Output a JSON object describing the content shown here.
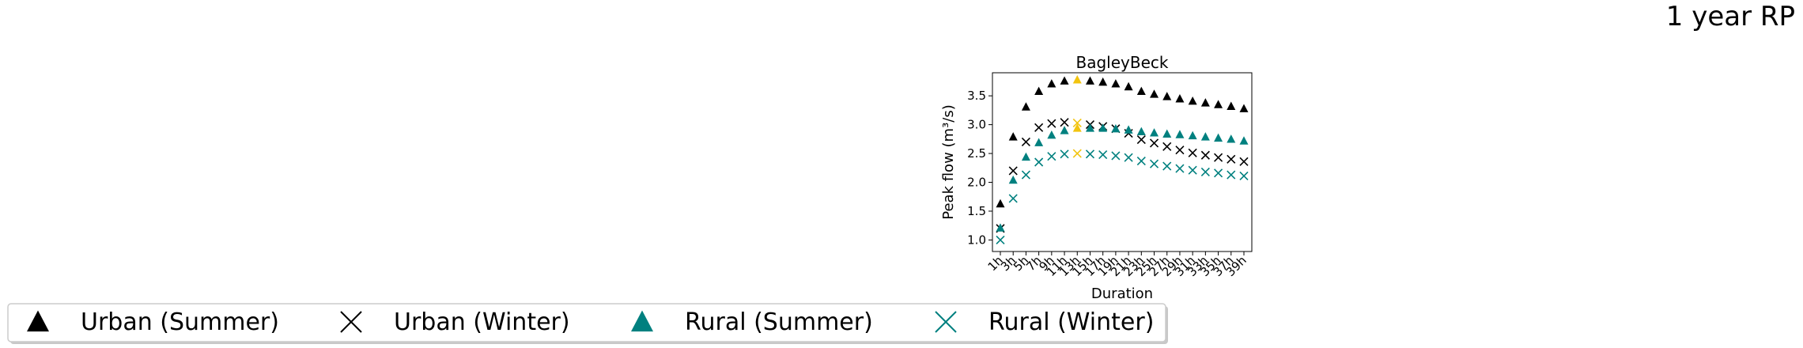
{
  "figure": {
    "suptitle": "1 year RP"
  },
  "colors": {
    "urban": "#000000",
    "rural": "#00807f",
    "highlight": "#f2c40f"
  },
  "legend": {
    "placement": "bottom-left",
    "items": [
      {
        "label": "Urban (Summer)",
        "marker": "triangle",
        "color": "#000000"
      },
      {
        "label": "Urban (Winter)",
        "marker": "x",
        "color": "#000000"
      },
      {
        "label": "Rural (Summer)",
        "marker": "triangle",
        "color": "#00807f"
      },
      {
        "label": "Rural (Winter)",
        "marker": "x",
        "color": "#00807f"
      }
    ]
  },
  "chart_data": {
    "type": "scatter",
    "title": "BagleyBeck",
    "xlabel": "Duration",
    "ylabel": "Peak flow (m³/s)",
    "ylim": [
      0.8,
      3.9
    ],
    "yticks": [
      1.0,
      1.5,
      2.0,
      2.5,
      3.0,
      3.5
    ],
    "grid": false,
    "categories": [
      "1h",
      "3h",
      "5h",
      "7h",
      "9h",
      "11h",
      "13h",
      "15h",
      "17h",
      "19h",
      "21h",
      "23h",
      "25h",
      "27h",
      "29h",
      "31h",
      "33h",
      "35h",
      "37h",
      "39h"
    ],
    "highlight_category": "13h",
    "series": [
      {
        "name": "Urban (Summer)",
        "marker": "triangle",
        "color": "#000000",
        "values": [
          1.62,
          2.78,
          3.3,
          3.57,
          3.7,
          3.75,
          3.77,
          3.75,
          3.73,
          3.7,
          3.65,
          3.57,
          3.52,
          3.48,
          3.44,
          3.4,
          3.37,
          3.34,
          3.31,
          3.27
        ]
      },
      {
        "name": "Urban (Winter)",
        "marker": "x",
        "color": "#000000",
        "values": [
          1.2,
          2.2,
          2.7,
          2.95,
          3.02,
          3.04,
          3.03,
          3.0,
          2.97,
          2.93,
          2.85,
          2.74,
          2.68,
          2.62,
          2.56,
          2.51,
          2.47,
          2.43,
          2.4,
          2.36
        ]
      },
      {
        "name": "Rural (Summer)",
        "marker": "triangle",
        "color": "#00807f",
        "values": [
          1.2,
          2.03,
          2.43,
          2.68,
          2.81,
          2.89,
          2.93,
          2.93,
          2.93,
          2.92,
          2.9,
          2.87,
          2.85,
          2.83,
          2.82,
          2.8,
          2.78,
          2.76,
          2.74,
          2.71
        ]
      },
      {
        "name": "Rural (Winter)",
        "marker": "x",
        "color": "#00807f",
        "values": [
          1.0,
          1.72,
          2.13,
          2.35,
          2.45,
          2.49,
          2.5,
          2.49,
          2.48,
          2.46,
          2.43,
          2.37,
          2.32,
          2.28,
          2.24,
          2.21,
          2.18,
          2.16,
          2.13,
          2.11
        ]
      }
    ]
  }
}
